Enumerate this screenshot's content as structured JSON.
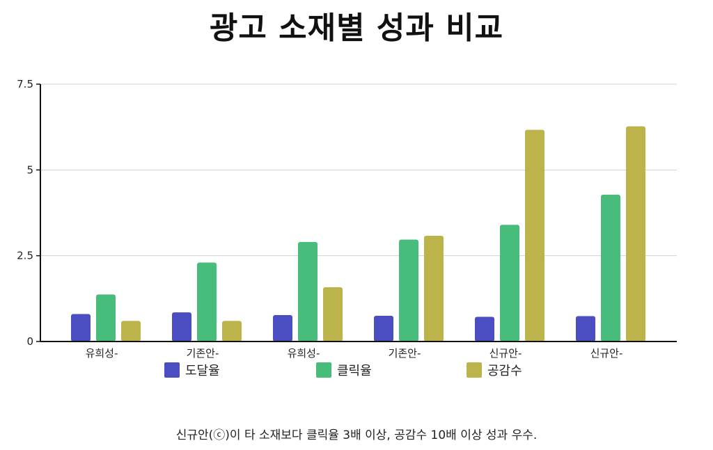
{
  "title": "광고 소재별 성과 비교",
  "footnote": "신규안(ⓒ)이 타 소재보다 클릭율 3배 이상, 공감수 10배 이상 성과 우수.",
  "colors": {
    "도달율": "#4a4ec0",
    "클릭율": "#48bd7b",
    "공감수": "#bcb44a",
    "grid": "#d0d0d0",
    "axis": "#111111"
  },
  "chart_data": {
    "type": "bar",
    "title": "광고 소재별 성과 비교",
    "xlabel": "",
    "ylabel": "",
    "ylim": [
      0,
      7.5
    ],
    "yticks": [
      0,
      2.5,
      5,
      7.5
    ],
    "ytick_labels": [
      "0",
      "2.5",
      "5",
      "7.5"
    ],
    "grid": true,
    "legend_position": "bottom",
    "categories": [
      "유희성-",
      "기존안-",
      "유희성-",
      "기존안-",
      "신규안-",
      "신규안-"
    ],
    "series": [
      {
        "name": "도달율",
        "values": [
          0.8,
          0.85,
          0.77,
          0.75,
          0.72,
          0.74
        ]
      },
      {
        "name": "클릭율",
        "values": [
          1.37,
          2.3,
          2.9,
          2.97,
          3.4,
          4.28
        ]
      },
      {
        "name": "공감수",
        "values": [
          0.6,
          0.6,
          1.58,
          3.08,
          6.17,
          6.27
        ]
      }
    ]
  }
}
